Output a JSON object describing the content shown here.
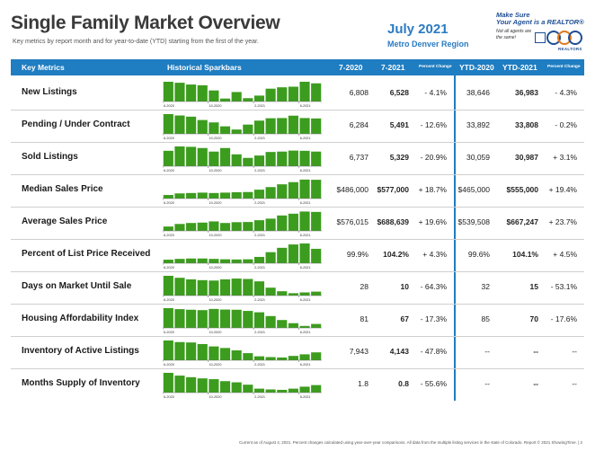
{
  "page": {
    "title": "Single Family Market Overview",
    "subtitle": "Key metrics by report month and for year-to-date (YTD) starting from the first of the year.",
    "period": "July 2021",
    "region": "Metro Denver Region",
    "footer": "Current as of August 4, 2021. Percent changes calculated using year-over-year comparisons. All data from the multiple listing services in the state of Colorado. Report © 2021 ShowingTime.  |  2"
  },
  "logo": {
    "tagline_1": "Make Sure",
    "tagline_2": "Your Agent is a REALTOR®",
    "note": "Not all agents are the same!",
    "word": "REALTORS"
  },
  "headers": {
    "key_metrics": "Key Metrics",
    "sparkbars": "Historical Sparkbars",
    "m2020": "7-2020",
    "m2021": "7-2021",
    "pct": "Percent Change",
    "ytd2020": "YTD-2020",
    "ytd2021": "YTD-2021",
    "ytd_pct": "Percent Change"
  },
  "colors": {
    "accent": "#1f7dc1",
    "bar": "#3c9c1e",
    "title_text": "#3a3a3a"
  },
  "chart_data": {
    "type": "bar",
    "tick_labels": [
      "6-2020",
      "10-2020",
      "2-2021",
      "6-2021"
    ],
    "tick_indices": [
      0,
      4,
      8,
      12
    ],
    "metrics": [
      {
        "label": "New Listings",
        "m2020": "6,808",
        "m2021": "6,528",
        "pct": "- 4.1%",
        "ytd2020": "38,646",
        "ytd2021": "36,983",
        "ytd_pct": "- 4.3%",
        "values": [
          1.0,
          0.95,
          0.86,
          0.82,
          0.56,
          0.15,
          0.48,
          0.17,
          0.3,
          0.65,
          0.72,
          0.75,
          1.0,
          0.92
        ]
      },
      {
        "label": "Pending / Under Contract",
        "m2020": "6,284",
        "m2021": "5,491",
        "pct": "- 12.6%",
        "ytd2020": "33,892",
        "ytd2021": "33,808",
        "ytd_pct": "- 0.2%",
        "values": [
          1.0,
          0.93,
          0.87,
          0.7,
          0.58,
          0.38,
          0.22,
          0.47,
          0.67,
          0.79,
          0.8,
          0.92,
          0.8,
          0.78
        ]
      },
      {
        "label": "Sold Listings",
        "m2020": "6,737",
        "m2021": "5,329",
        "pct": "- 20.9%",
        "ytd2020": "30,059",
        "ytd2021": "30,987",
        "ytd_pct": "+ 3.1%",
        "values": [
          0.78,
          1.0,
          0.98,
          0.92,
          0.74,
          0.92,
          0.6,
          0.42,
          0.54,
          0.72,
          0.74,
          0.79,
          0.78,
          0.74
        ]
      },
      {
        "label": "Median Sales Price",
        "m2020": "$486,000",
        "m2021": "$577,000",
        "pct": "+ 18.7%",
        "ytd2020": "$465,000",
        "ytd2021": "$555,000",
        "ytd_pct": "+ 19.4%",
        "values": [
          0.18,
          0.26,
          0.28,
          0.3,
          0.28,
          0.3,
          0.32,
          0.33,
          0.45,
          0.58,
          0.72,
          0.83,
          0.96,
          0.95
        ]
      },
      {
        "label": "Average Sales Price",
        "m2020": "$576,015",
        "m2021": "$688,639",
        "pct": "+ 19.6%",
        "ytd2020": "$539,508",
        "ytd2021": "$667,247",
        "ytd_pct": "+ 23.7%",
        "values": [
          0.22,
          0.35,
          0.4,
          0.42,
          0.48,
          0.4,
          0.44,
          0.45,
          0.54,
          0.62,
          0.78,
          0.87,
          0.98,
          0.96
        ]
      },
      {
        "label": "Percent of List Price Received",
        "m2020": "99.9%",
        "m2021": "104.2%",
        "pct": "+ 4.3%",
        "ytd2020": "99.6%",
        "ytd2021": "104.1%",
        "ytd_pct": "+ 4.5%",
        "values": [
          0.18,
          0.22,
          0.24,
          0.24,
          0.22,
          0.2,
          0.19,
          0.2,
          0.32,
          0.56,
          0.78,
          0.95,
          1.0,
          0.73
        ]
      },
      {
        "label": "Days on Market Until Sale",
        "m2020": "28",
        "m2021": "10",
        "pct": "- 64.3%",
        "ytd2020": "32",
        "ytd2021": "15",
        "ytd_pct": "- 53.1%",
        "values": [
          1.0,
          0.9,
          0.82,
          0.78,
          0.76,
          0.82,
          0.86,
          0.84,
          0.72,
          0.4,
          0.22,
          0.12,
          0.16,
          0.2
        ]
      },
      {
        "label": "Housing Affordability Index",
        "m2020": "81",
        "m2021": "67",
        "pct": "- 17.3%",
        "ytd2020": "85",
        "ytd2021": "70",
        "ytd_pct": "- 17.6%",
        "values": [
          1.0,
          0.95,
          0.92,
          0.9,
          0.96,
          0.93,
          0.92,
          0.86,
          0.79,
          0.6,
          0.4,
          0.24,
          0.1,
          0.2
        ]
      },
      {
        "label": "Inventory of Active Listings",
        "m2020": "7,943",
        "m2021": "4,143",
        "pct": "- 47.8%",
        "ytd2020": "--",
        "ytd2021": "--",
        "ytd_pct": "--",
        "values": [
          1.0,
          0.92,
          0.9,
          0.82,
          0.7,
          0.62,
          0.5,
          0.36,
          0.2,
          0.16,
          0.14,
          0.22,
          0.3,
          0.4
        ]
      },
      {
        "label": "Months Supply of Inventory",
        "m2020": "1.8",
        "m2021": "0.8",
        "pct": "- 55.6%",
        "ytd2020": "--",
        "ytd2021": "--",
        "ytd_pct": "--",
        "values": [
          1.0,
          0.86,
          0.78,
          0.72,
          0.68,
          0.58,
          0.52,
          0.4,
          0.2,
          0.16,
          0.14,
          0.2,
          0.3,
          0.38
        ]
      }
    ]
  }
}
